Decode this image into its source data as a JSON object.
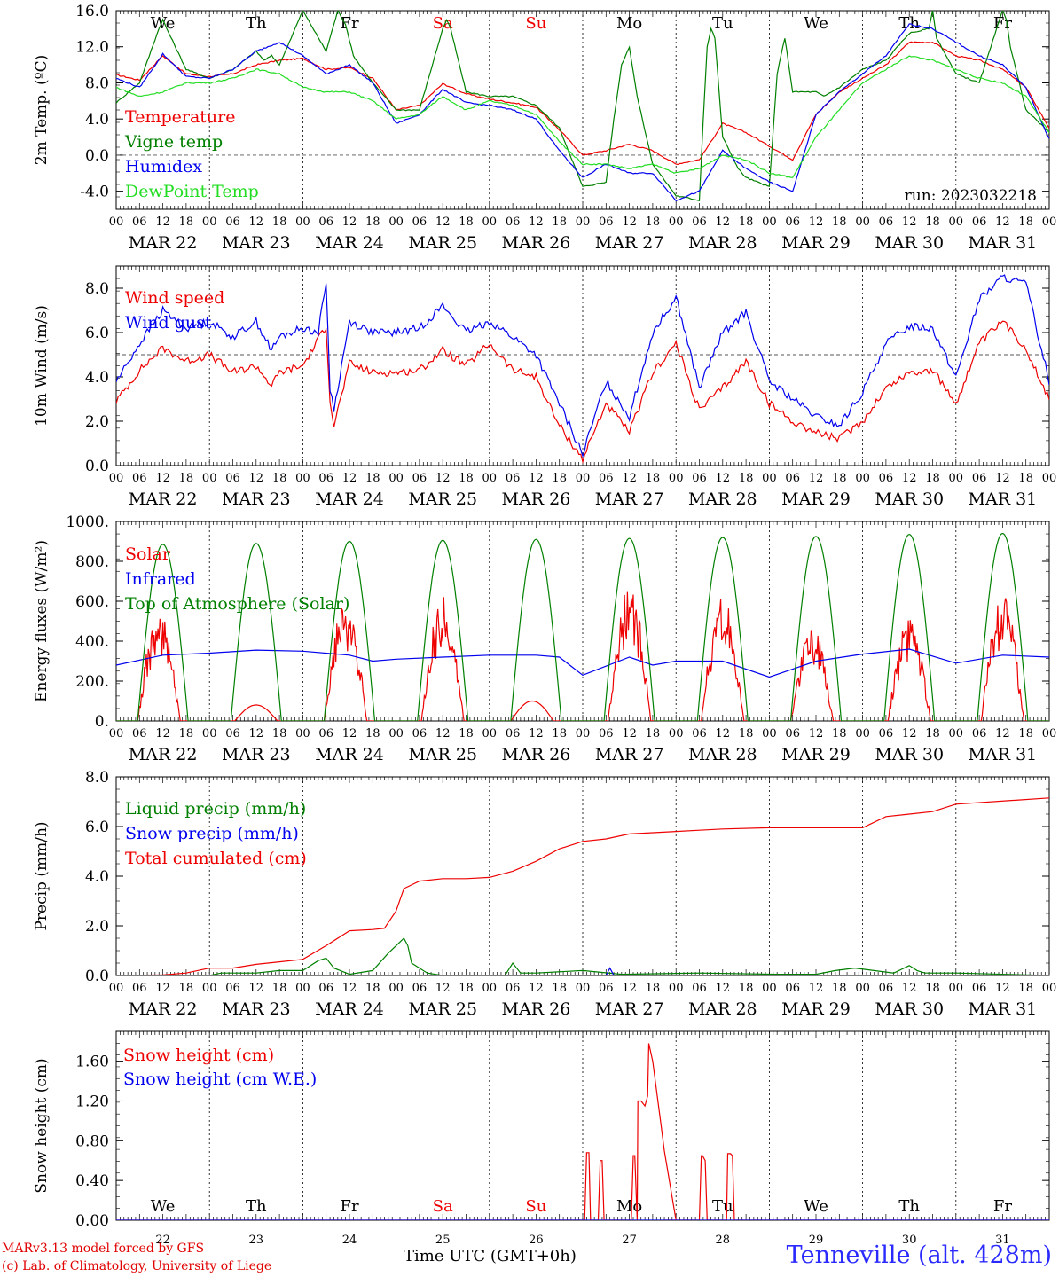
{
  "footer": {
    "credit_line1": "MARv3.13 model forced by GFS",
    "credit_line2": "(c) Lab. of Climatology, University of Liege",
    "time_label": "Time UTC (GMT+0h)",
    "station": "Tenneville (alt. 428m)"
  },
  "run_label": "run: 2023032218",
  "colors": {
    "red": "#ee0000",
    "green": "#008000",
    "blue": "#0000ee",
    "lime": "#22dd22",
    "weekend": "#ee0000"
  },
  "hour_ticks": [
    "00",
    "06",
    "12",
    "18"
  ],
  "day_dates": [
    "MAR 22",
    "MAR 23",
    "MAR 24",
    "MAR 25",
    "MAR 26",
    "MAR 27",
    "MAR 28",
    "MAR 29",
    "MAR 30",
    "MAR 31"
  ],
  "weekdays": [
    "We",
    "Th",
    "Fr",
    "Sa",
    "Su",
    "Mo",
    "Tu",
    "We",
    "Th",
    "Fr"
  ],
  "weekend_flags": [
    false,
    false,
    false,
    true,
    true,
    false,
    false,
    false,
    false,
    false
  ],
  "day_numbers": [
    "22",
    "23",
    "24",
    "25",
    "26",
    "27",
    "28",
    "29",
    "30",
    "31"
  ],
  "chart_data": [
    {
      "type": "line",
      "ylabel": "2m Temp. (ºC)",
      "ylim": [
        -6,
        16
      ],
      "yticks": [
        "16.0",
        "12.0",
        "8.0",
        "4.0",
        "0.0",
        "-4.0"
      ],
      "reference_line": 0,
      "x_unit": "hours since MAR 22 00 UTC",
      "xlim": [
        0,
        240
      ],
      "series": [
        {
          "name": "Temperature",
          "color": "#ee0000",
          "x": [
            0,
            6,
            12,
            18,
            24,
            30,
            36,
            42,
            48,
            54,
            60,
            66,
            72,
            78,
            84,
            90,
            96,
            102,
            108,
            114,
            120,
            126,
            132,
            138,
            144,
            150,
            156,
            162,
            168,
            174,
            180,
            186,
            192,
            198,
            204,
            210,
            216,
            222,
            228,
            234,
            240
          ],
          "values": [
            8.9,
            8.3,
            11.0,
            9.0,
            8.7,
            9.0,
            10.0,
            10.5,
            10.7,
            9.5,
            9.7,
            8.5,
            5.0,
            5.5,
            7.9,
            6.8,
            6.2,
            5.8,
            5.3,
            2.8,
            0.0,
            0.5,
            1.2,
            0.5,
            -1.0,
            -0.5,
            3.5,
            2.5,
            1.0,
            -0.5,
            4.5,
            7.0,
            8.5,
            10.0,
            12.5,
            12.5,
            11.0,
            10.5,
            9.5,
            7.5,
            3.0
          ]
        },
        {
          "name": "Vigne temp",
          "color": "#008000",
          "x": [
            0,
            6,
            11,
            12,
            13,
            18,
            24,
            30,
            36,
            38,
            40,
            42,
            48,
            54,
            57,
            59,
            61,
            66,
            72,
            78,
            84,
            85,
            86,
            90,
            96,
            102,
            108,
            114,
            120,
            126,
            128,
            130,
            132,
            134,
            138,
            144,
            150,
            151,
            152,
            153,
            154,
            156,
            160,
            162,
            168,
            170,
            172,
            174,
            180,
            182,
            184,
            186,
            192,
            198,
            204,
            209,
            210,
            211,
            216,
            222,
            228,
            229,
            230,
            234,
            240
          ],
          "values": [
            5.8,
            8.0,
            14.0,
            15.0,
            14.0,
            9.5,
            8.5,
            9.5,
            11.5,
            10.5,
            11.0,
            10.0,
            16.0,
            11.5,
            16.0,
            14.5,
            11.0,
            8.0,
            5.0,
            5.0,
            14.0,
            15.0,
            14.0,
            7.0,
            6.5,
            6.5,
            5.5,
            3.0,
            -3.5,
            -3.0,
            4.0,
            10.0,
            12.0,
            6.5,
            -1.0,
            -4.5,
            -5.0,
            4.0,
            12.0,
            14.0,
            13.0,
            2.0,
            -1.5,
            -2.5,
            -3.5,
            9.0,
            13.0,
            7.0,
            7.0,
            6.5,
            7.0,
            7.5,
            9.5,
            10.5,
            13.5,
            14.0,
            16.0,
            13.0,
            9.0,
            8.0,
            16.0,
            15.0,
            12.0,
            5.0,
            2.5
          ]
        },
        {
          "name": "Humidex",
          "color": "#0000ee",
          "x": [
            0,
            6,
            12,
            18,
            24,
            30,
            36,
            42,
            48,
            54,
            60,
            66,
            72,
            78,
            84,
            90,
            96,
            102,
            108,
            114,
            120,
            126,
            132,
            138,
            144,
            150,
            156,
            162,
            168,
            174,
            180,
            186,
            192,
            198,
            204,
            210,
            216,
            222,
            228,
            234,
            240
          ],
          "values": [
            8.5,
            7.5,
            11.2,
            8.7,
            8.5,
            9.5,
            11.5,
            12.5,
            11.0,
            9.0,
            10.0,
            8.0,
            3.5,
            4.5,
            7.3,
            5.8,
            5.5,
            5.0,
            4.0,
            0.5,
            -2.5,
            -1.0,
            -2.0,
            -2.0,
            -5.0,
            -4.0,
            0.5,
            -1.5,
            -3.0,
            -4.0,
            4.5,
            7.0,
            9.0,
            11.0,
            14.5,
            14.0,
            12.5,
            11.0,
            10.0,
            7.5,
            1.8
          ]
        },
        {
          "name": "DewPoint Temp",
          "color": "#22dd22",
          "x": [
            0,
            6,
            12,
            18,
            24,
            30,
            36,
            42,
            48,
            54,
            60,
            66,
            72,
            78,
            84,
            90,
            96,
            102,
            108,
            114,
            120,
            126,
            132,
            138,
            144,
            150,
            156,
            162,
            168,
            174,
            180,
            186,
            192,
            198,
            204,
            210,
            216,
            222,
            228,
            234,
            240
          ],
          "values": [
            7.5,
            6.5,
            7.0,
            8.0,
            8.0,
            8.5,
            9.5,
            9.0,
            7.5,
            7.0,
            7.0,
            6.0,
            4.0,
            4.5,
            6.5,
            5.0,
            6.0,
            5.5,
            4.5,
            1.5,
            -1.0,
            -1.0,
            -1.5,
            -1.0,
            -2.0,
            -1.5,
            0.0,
            -0.5,
            -2.0,
            -2.5,
            2.0,
            5.0,
            8.0,
            9.5,
            11.0,
            10.5,
            9.5,
            8.5,
            8.0,
            6.5,
            2.5
          ]
        }
      ]
    },
    {
      "type": "line",
      "ylabel": "10m Wind (m/s)",
      "ylim": [
        0,
        9
      ],
      "yticks": [
        "8.0",
        "6.0",
        "4.0",
        "2.0",
        "0.0"
      ],
      "reference_line": 5,
      "x_unit": "hours since MAR 22 00 UTC",
      "xlim": [
        0,
        240
      ],
      "series": [
        {
          "name": "Wind speed",
          "color": "#ee0000",
          "x": [
            0,
            6,
            12,
            18,
            24,
            30,
            36,
            40,
            42,
            48,
            54,
            55,
            56,
            60,
            66,
            72,
            78,
            84,
            90,
            96,
            102,
            108,
            112,
            114,
            120,
            126,
            132,
            138,
            144,
            150,
            156,
            162,
            168,
            174,
            180,
            186,
            192,
            198,
            204,
            210,
            216,
            222,
            228,
            234,
            240
          ],
          "values": [
            2.9,
            4.3,
            5.3,
            4.7,
            5.0,
            4.2,
            4.5,
            3.6,
            4.2,
            4.5,
            6.3,
            3.0,
            1.8,
            4.6,
            4.2,
            4.2,
            4.3,
            5.2,
            4.5,
            5.5,
            4.3,
            4.0,
            2.5,
            1.8,
            0.3,
            2.8,
            1.5,
            4.2,
            5.5,
            2.5,
            3.5,
            4.7,
            2.8,
            2.0,
            1.5,
            1.2,
            2.0,
            3.5,
            4.2,
            4.3,
            2.8,
            5.5,
            6.5,
            5.3,
            3.0
          ]
        },
        {
          "name": "Wind gust",
          "color": "#0000ee",
          "x": [
            0,
            6,
            12,
            18,
            24,
            30,
            36,
            40,
            42,
            48,
            52,
            54,
            55,
            56,
            60,
            66,
            72,
            78,
            84,
            90,
            96,
            102,
            108,
            112,
            114,
            120,
            126,
            132,
            138,
            144,
            150,
            156,
            162,
            168,
            174,
            180,
            186,
            192,
            198,
            204,
            210,
            216,
            222,
            228,
            234,
            240
          ],
          "values": [
            3.8,
            5.5,
            7.0,
            6.2,
            6.5,
            5.8,
            6.5,
            5.2,
            5.8,
            6.2,
            6.0,
            8.3,
            3.5,
            2.5,
            6.5,
            6.0,
            6.0,
            6.2,
            7.2,
            6.0,
            6.5,
            5.8,
            5.0,
            3.5,
            2.8,
            0.5,
            3.8,
            2.2,
            6.0,
            7.6,
            3.5,
            6.0,
            6.9,
            3.8,
            3.0,
            2.2,
            1.8,
            3.3,
            5.5,
            6.3,
            6.2,
            4.0,
            7.5,
            8.5,
            8.2,
            3.8
          ]
        }
      ]
    },
    {
      "type": "line",
      "ylabel": "Energy fluxes (W/m2)",
      "ylim": [
        0,
        1000
      ],
      "yticks": [
        "1000.",
        "800.",
        "600.",
        "400.",
        "200.",
        "0."
      ],
      "x_unit": "hours since MAR 22 00 UTC",
      "xlim": [
        0,
        240
      ],
      "series": [
        {
          "name": "Solar",
          "color": "#ee0000",
          "peaks_hour": [
            11,
            36,
            59,
            84,
            107,
            132,
            156,
            179,
            204,
            228
          ],
          "peaks_value": [
            570,
            80,
            640,
            640,
            100,
            700,
            680,
            480,
            520,
            640
          ]
        },
        {
          "name": "Infrared",
          "color": "#0000ee",
          "x": [
            0,
            12,
            24,
            36,
            48,
            60,
            66,
            72,
            84,
            96,
            108,
            114,
            120,
            132,
            138,
            144,
            156,
            168,
            180,
            192,
            204,
            216,
            228,
            240
          ],
          "values": [
            280,
            330,
            340,
            355,
            350,
            330,
            300,
            310,
            320,
            330,
            330,
            320,
            230,
            320,
            280,
            300,
            300,
            220,
            300,
            335,
            360,
            290,
            330,
            320
          ]
        },
        {
          "name": "Top of Atmosphere (Solar)",
          "color": "#008000",
          "peaks_hour": [
            12,
            36,
            60,
            84,
            108,
            132,
            156,
            180,
            204,
            228
          ],
          "peaks_value": [
            885,
            890,
            900,
            905,
            910,
            915,
            920,
            925,
            935,
            940
          ]
        }
      ]
    },
    {
      "type": "line",
      "ylabel": "Precip (mm/h)",
      "ylim": [
        0,
        8
      ],
      "yticks": [
        "8.0",
        "6.0",
        "4.0",
        "2.0",
        "0.0"
      ],
      "x_unit": "hours since MAR 22 00 UTC",
      "xlim": [
        0,
        240
      ],
      "series": [
        {
          "name": "Liquid precip (mm/h)",
          "color": "#008000",
          "x": [
            0,
            24,
            27,
            36,
            42,
            48,
            52,
            54,
            56,
            60,
            66,
            70,
            72,
            74,
            75,
            76,
            78,
            80,
            84,
            96,
            100,
            102,
            104,
            108,
            120,
            130,
            150,
            170,
            180,
            185,
            190,
            200,
            204,
            206,
            208,
            216,
            240
          ],
          "values": [
            0,
            0,
            0.1,
            0.1,
            0.2,
            0.2,
            0.6,
            0.7,
            0.3,
            0.05,
            0.2,
            0.9,
            1.2,
            1.5,
            1.2,
            0.5,
            0.3,
            0.1,
            0,
            0,
            0,
            0.5,
            0.1,
            0.1,
            0.2,
            0.05,
            0.1,
            0.05,
            0.05,
            0.2,
            0.3,
            0.1,
            0.4,
            0.2,
            0.1,
            0.1,
            0
          ]
        },
        {
          "name": "Snow precip (mm/h)",
          "color": "#0000ee",
          "x": [
            0,
            120,
            126,
            127,
            128,
            144,
            240
          ],
          "values": [
            0,
            0,
            0,
            0.3,
            0,
            0,
            0
          ]
        },
        {
          "name": "Total cumulated (cm)",
          "color": "#ee0000",
          "x": [
            0,
            12,
            18,
            24,
            30,
            36,
            42,
            48,
            54,
            60,
            66,
            69,
            72,
            74,
            78,
            84,
            90,
            96,
            102,
            108,
            114,
            120,
            126,
            132,
            144,
            150,
            156,
            168,
            180,
            192,
            198,
            204,
            210,
            216,
            240
          ],
          "values": [
            0,
            0.02,
            0.1,
            0.3,
            0.3,
            0.45,
            0.55,
            0.65,
            1.2,
            1.8,
            1.85,
            1.9,
            2.6,
            3.5,
            3.8,
            3.9,
            3.9,
            3.95,
            4.2,
            4.6,
            5.1,
            5.4,
            5.5,
            5.7,
            5.8,
            5.85,
            5.9,
            5.95,
            5.95,
            5.95,
            6.4,
            6.5,
            6.6,
            6.9,
            7.15
          ]
        }
      ]
    },
    {
      "type": "line",
      "ylabel": "Snow height (cm)",
      "ylim": [
        0,
        1.9
      ],
      "yticks": [
        "1.60",
        "1.20",
        "0.80",
        "0.40",
        "0.00"
      ],
      "x_unit": "hours since MAR 22 00 UTC",
      "xlim": [
        0,
        240
      ],
      "series": [
        {
          "name": "Snow height (cm)",
          "color": "#ee0000",
          "x": [
            0,
            120.5,
            121,
            121.6,
            122,
            124,
            124.5,
            125,
            125.5,
            126,
            132.5,
            133,
            133.4,
            134,
            134.2,
            135,
            136,
            136.7,
            137,
            138,
            140,
            141,
            144,
            147,
            147.5,
            148,
            140.5,
            141.5,
            150,
            150.5,
            150.8,
            151.5,
            152,
            156,
            157,
            157.3,
            158,
            158.5,
            159,
            240
          ],
          "values": [
            0,
            0,
            0.68,
            0.68,
            0,
            0,
            0.6,
            0.6,
            0,
            0,
            0,
            0.65,
            0.65,
            0,
            1.2,
            1.2,
            1.15,
            1.25,
            1.78,
            1.6,
            1.0,
            0.7,
            0,
            0,
            0,
            0,
            0,
            0,
            0,
            0.65,
            0.65,
            0.6,
            0,
            0,
            0,
            0.67,
            0.67,
            0.65,
            0,
            0
          ]
        },
        {
          "name": "Snow height (cm W.E.)",
          "color": "#0000ee",
          "x": [
            0,
            240
          ],
          "values": [
            0,
            0
          ]
        }
      ]
    }
  ]
}
